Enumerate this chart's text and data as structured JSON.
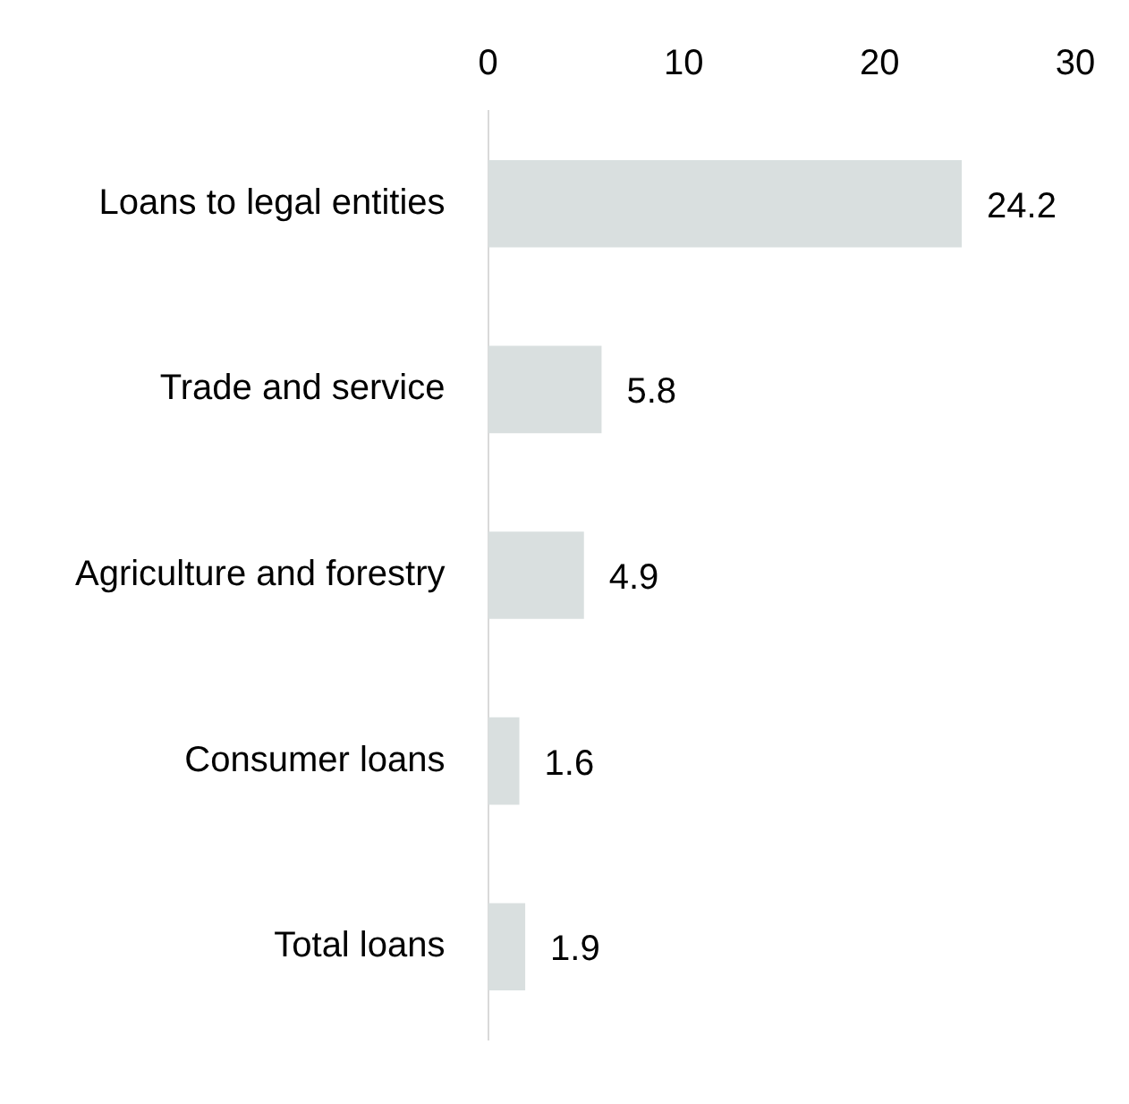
{
  "chart_data": {
    "type": "bar",
    "orientation": "horizontal",
    "categories": [
      "Loans to legal entities",
      "Trade and service",
      "Agriculture and forestry",
      "Consumer loans",
      "Total loans"
    ],
    "values": [
      24.2,
      5.8,
      4.9,
      1.6,
      1.9
    ],
    "color": "#d9dfdf",
    "xlim": [
      0,
      30
    ],
    "xticks": [
      0,
      10,
      20,
      30
    ],
    "grid": false,
    "legend": false,
    "data_labels": true
  }
}
